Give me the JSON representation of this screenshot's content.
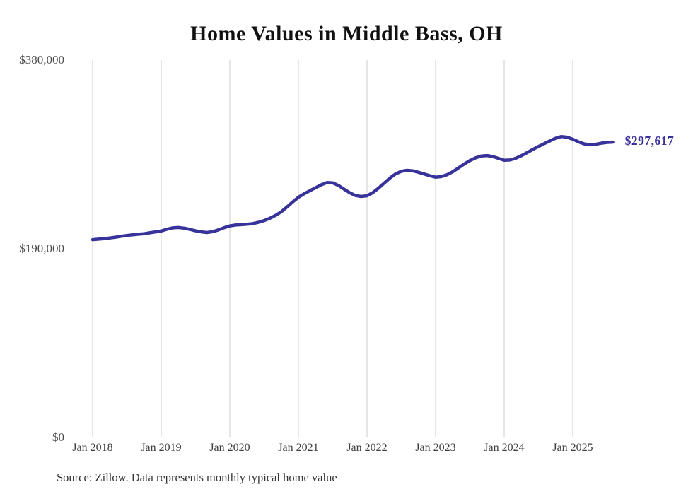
{
  "title": "Home Values in Middle Bass, OH",
  "source_note": "Source: Zillow. Data represents monthly typical home value",
  "end_label": "$297,617",
  "colors": {
    "line": "#38329b",
    "grid": "#cccccc",
    "y_tick_text": "#4d4d4d",
    "x_tick_text": "#3d3d3d",
    "title_text": "#111111",
    "source_text": "#333333",
    "end_label_text": "#38329b",
    "background": "#ffffff"
  },
  "chart_data": {
    "type": "line",
    "title": "Home Values in Middle Bass, OH",
    "series_name": "Typical home value (monthly)",
    "xlabel": "",
    "ylabel": "",
    "ylim": [
      0,
      380000
    ],
    "grid": "vertical-only",
    "legend": "none",
    "last_value": 297617,
    "last_point_label": "$297,617",
    "y_ticks": [
      {
        "label": "$380,000",
        "value": 380000
      },
      {
        "label": "$190,000",
        "value": 190000
      },
      {
        "label": "$0",
        "value": 0
      }
    ],
    "x_ticks": [
      {
        "label": "Jan 2018",
        "month_index": 0
      },
      {
        "label": "Jan 2019",
        "month_index": 12
      },
      {
        "label": "Jan 2020",
        "month_index": 24
      },
      {
        "label": "Jan 2021",
        "month_index": 36
      },
      {
        "label": "Jan 2022",
        "month_index": 48
      },
      {
        "label": "Jan 2023",
        "month_index": 60
      },
      {
        "label": "Jan 2024",
        "month_index": 72
      },
      {
        "label": "Jan 2025",
        "month_index": 84
      }
    ],
    "x": [
      "2018-01",
      "2018-02",
      "2018-03",
      "2018-04",
      "2018-05",
      "2018-06",
      "2018-07",
      "2018-08",
      "2018-09",
      "2018-10",
      "2018-11",
      "2018-12",
      "2019-01",
      "2019-02",
      "2019-03",
      "2019-04",
      "2019-05",
      "2019-06",
      "2019-07",
      "2019-08",
      "2019-09",
      "2019-10",
      "2019-11",
      "2019-12",
      "2020-01",
      "2020-02",
      "2020-03",
      "2020-04",
      "2020-05",
      "2020-06",
      "2020-07",
      "2020-08",
      "2020-09",
      "2020-10",
      "2020-11",
      "2020-12",
      "2021-01",
      "2021-02",
      "2021-03",
      "2021-04",
      "2021-05",
      "2021-06",
      "2021-07",
      "2021-08",
      "2021-09",
      "2021-10",
      "2021-11",
      "2021-12",
      "2022-01",
      "2022-02",
      "2022-03",
      "2022-04",
      "2022-05",
      "2022-06",
      "2022-07",
      "2022-08",
      "2022-09",
      "2022-10",
      "2022-11",
      "2022-12",
      "2023-01",
      "2023-02",
      "2023-03",
      "2023-04",
      "2023-05",
      "2023-06",
      "2023-07",
      "2023-08",
      "2023-09",
      "2023-10",
      "2023-11",
      "2023-12",
      "2024-01",
      "2024-02",
      "2024-03",
      "2024-04",
      "2024-05",
      "2024-06",
      "2024-07",
      "2024-08",
      "2024-09",
      "2024-10",
      "2024-11",
      "2024-12",
      "2025-01",
      "2025-02",
      "2025-03",
      "2025-04",
      "2025-05",
      "2025-06",
      "2025-07",
      "2025-08"
    ],
    "values": [
      199400,
      199900,
      200400,
      201100,
      201900,
      202800,
      203600,
      204300,
      204900,
      205400,
      206300,
      207200,
      208100,
      209900,
      211300,
      211600,
      211000,
      209800,
      208300,
      207200,
      206600,
      207400,
      209200,
      211400,
      213300,
      214100,
      214500,
      214900,
      215500,
      216800,
      218600,
      220900,
      223800,
      227500,
      232300,
      237400,
      242100,
      245600,
      248700,
      251700,
      254600,
      256900,
      256600,
      254000,
      250200,
      246500,
      243800,
      242900,
      243600,
      246700,
      251200,
      256300,
      261400,
      265600,
      268200,
      269200,
      268700,
      267200,
      265500,
      263700,
      262300,
      262900,
      264800,
      267800,
      271600,
      275500,
      279000,
      281800,
      283600,
      284100,
      283100,
      281200,
      279300,
      279600,
      281300,
      283900,
      287000,
      290200,
      293200,
      296100,
      298900,
      301500,
      303200,
      302600,
      300500,
      297900,
      295800,
      294900,
      295400,
      296500,
      297300,
      297617
    ]
  }
}
